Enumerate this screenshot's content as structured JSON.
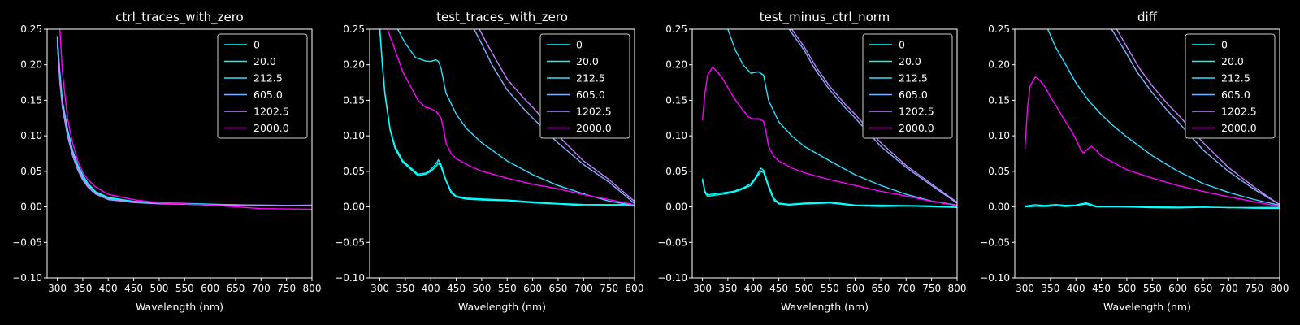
{
  "theme": {
    "background": "#000000",
    "axis_color": "#ffffff",
    "series_colors": {
      "0": "#00ffff",
      "20.0": "#0affff",
      "212.5": "#33ddff",
      "605.0": "#7fb1ff",
      "1202.5": "#c080ff",
      "2000.0": "#ff00ff"
    }
  },
  "chart_data": [
    {
      "type": "line",
      "title": "ctrl_traces_with_zero",
      "xlabel": "Wavelength (nm)",
      "ylabel": "",
      "xlim": [
        280,
        800
      ],
      "ylim": [
        -0.1,
        0.25
      ],
      "xticks": [
        "300",
        "350",
        "400",
        "450",
        "500",
        "550",
        "600",
        "650",
        "700",
        "750",
        "800"
      ],
      "yticks": [
        "−0.10",
        "−0.05",
        "0.00",
        "0.05",
        "0.10",
        "0.15",
        "0.20",
        "0.25"
      ],
      "legend_position": "top-right",
      "grid": false,
      "series": [
        {
          "name": "0",
          "x": [
            300,
            305,
            310,
            320,
            330,
            340,
            350,
            360,
            375,
            400,
            450,
            500,
            600,
            700,
            800
          ],
          "y": [
            0.24,
            0.19,
            0.15,
            0.11,
            0.08,
            0.06,
            0.045,
            0.033,
            0.022,
            0.013,
            0.008,
            0.006,
            0.004,
            0.002,
            0.002
          ]
        },
        {
          "name": "20.0",
          "x": [
            300,
            305,
            310,
            320,
            330,
            340,
            350,
            360,
            375,
            400,
            450,
            500,
            600,
            700,
            800
          ],
          "y": [
            0.24,
            0.185,
            0.148,
            0.108,
            0.078,
            0.058,
            0.044,
            0.032,
            0.021,
            0.012,
            0.007,
            0.005,
            0.003,
            0.002,
            0.002
          ]
        },
        {
          "name": "212.5",
          "x": [
            300,
            305,
            310,
            320,
            330,
            340,
            350,
            360,
            375,
            400,
            450,
            500,
            600,
            700,
            800
          ],
          "y": [
            0.235,
            0.18,
            0.145,
            0.105,
            0.076,
            0.056,
            0.042,
            0.03,
            0.02,
            0.011,
            0.007,
            0.005,
            0.003,
            0.002,
            0.002
          ]
        },
        {
          "name": "605.0",
          "x": [
            300,
            305,
            310,
            320,
            330,
            340,
            350,
            360,
            375,
            400,
            450,
            500,
            600,
            700,
            800
          ],
          "y": [
            0.23,
            0.175,
            0.14,
            0.1,
            0.072,
            0.052,
            0.038,
            0.028,
            0.018,
            0.01,
            0.006,
            0.004,
            0.003,
            0.002,
            0.002
          ]
        },
        {
          "name": "1202.5",
          "x": [
            300,
            305,
            310,
            320,
            330,
            340,
            350,
            360,
            375,
            400,
            450,
            500,
            600,
            700,
            800
          ],
          "y": [
            0.235,
            0.18,
            0.143,
            0.103,
            0.074,
            0.054,
            0.04,
            0.029,
            0.019,
            0.011,
            0.007,
            0.005,
            0.003,
            0.002,
            0.002
          ]
        },
        {
          "name": "2000.0",
          "x": [
            305,
            310,
            320,
            330,
            340,
            350,
            360,
            375,
            400,
            450,
            500,
            600,
            700,
            800
          ],
          "y": [
            0.25,
            0.19,
            0.125,
            0.09,
            0.065,
            0.048,
            0.038,
            0.028,
            0.018,
            0.01,
            0.006,
            0.003,
            -0.002,
            -0.003
          ]
        }
      ]
    },
    {
      "type": "line",
      "title": "test_traces_with_zero",
      "xlabel": "Wavelength (nm)",
      "ylabel": "",
      "xlim": [
        280,
        800
      ],
      "ylim": [
        -0.1,
        0.25
      ],
      "xticks": [
        "300",
        "350",
        "400",
        "450",
        "500",
        "550",
        "600",
        "650",
        "700",
        "750",
        "800"
      ],
      "yticks": [
        "−0.10",
        "−0.05",
        "0.00",
        "0.05",
        "0.10",
        "0.15",
        "0.20",
        "0.25"
      ],
      "legend_position": "top-right",
      "grid": false,
      "series": [
        {
          "name": "0",
          "x": [
            300,
            305,
            310,
            320,
            330,
            345,
            360,
            375,
            390,
            400,
            410,
            415,
            420,
            430,
            440,
            450,
            470,
            500,
            550,
            600,
            650,
            700,
            750,
            800
          ],
          "y": [
            0.25,
            0.2,
            0.16,
            0.11,
            0.085,
            0.065,
            0.055,
            0.046,
            0.048,
            0.052,
            0.06,
            0.066,
            0.06,
            0.038,
            0.022,
            0.015,
            0.012,
            0.011,
            0.01,
            0.007,
            0.005,
            0.003,
            0.003,
            0.003
          ]
        },
        {
          "name": "20.0",
          "x": [
            300,
            305,
            310,
            320,
            330,
            345,
            360,
            375,
            390,
            400,
            410,
            415,
            420,
            430,
            440,
            450,
            470,
            500,
            550,
            600,
            650,
            700,
            750,
            800
          ],
          "y": [
            0.25,
            0.198,
            0.158,
            0.108,
            0.082,
            0.063,
            0.053,
            0.044,
            0.046,
            0.05,
            0.057,
            0.062,
            0.057,
            0.036,
            0.02,
            0.014,
            0.011,
            0.01,
            0.009,
            0.006,
            0.004,
            0.002,
            0.002,
            0.002
          ]
        },
        {
          "name": "212.5",
          "x": [
            335,
            350,
            370,
            390,
            400,
            410,
            415,
            420,
            430,
            450,
            470,
            500,
            550,
            600,
            650,
            700,
            750,
            800
          ],
          "y": [
            0.25,
            0.23,
            0.21,
            0.205,
            0.205,
            0.207,
            0.205,
            0.195,
            0.16,
            0.13,
            0.11,
            0.09,
            0.065,
            0.045,
            0.03,
            0.018,
            0.008,
            0.002
          ]
        },
        {
          "name": "605.0",
          "x": [
            485,
            500,
            520,
            550,
            580,
            600,
            650,
            700,
            750,
            800
          ],
          "y": [
            0.25,
            0.23,
            0.2,
            0.165,
            0.14,
            0.125,
            0.09,
            0.06,
            0.035,
            0.005
          ]
        },
        {
          "name": "1202.5",
          "x": [
            495,
            510,
            530,
            550,
            580,
            600,
            650,
            700,
            750,
            800
          ],
          "y": [
            0.25,
            0.23,
            0.205,
            0.18,
            0.155,
            0.14,
            0.1,
            0.065,
            0.038,
            0.008
          ]
        },
        {
          "name": "2000.0",
          "x": [
            315,
            330,
            345,
            360,
            375,
            390,
            400,
            410,
            420,
            425,
            430,
            440,
            450,
            475,
            500,
            550,
            600,
            650,
            700,
            750,
            800
          ],
          "y": [
            0.25,
            0.22,
            0.19,
            0.17,
            0.15,
            0.14,
            0.138,
            0.135,
            0.125,
            0.11,
            0.09,
            0.075,
            0.068,
            0.058,
            0.05,
            0.04,
            0.032,
            0.025,
            0.017,
            0.01,
            0.003
          ]
        }
      ]
    },
    {
      "type": "line",
      "title": "test_minus_ctrl_norm",
      "xlabel": "Wavelength (nm)",
      "ylabel": "",
      "xlim": [
        280,
        800
      ],
      "ylim": [
        -0.1,
        0.25
      ],
      "xticks": [
        "300",
        "350",
        "400",
        "450",
        "500",
        "550",
        "600",
        "650",
        "700",
        "750",
        "800"
      ],
      "yticks": [
        "−0.10",
        "−0.05",
        "0.00",
        "0.05",
        "0.10",
        "0.15",
        "0.20",
        "0.25"
      ],
      "legend_position": "top-right",
      "grid": false,
      "series": [
        {
          "name": "0",
          "x": [
            300,
            305,
            310,
            320,
            340,
            360,
            380,
            395,
            405,
            415,
            420,
            430,
            440,
            450,
            470,
            500,
            550,
            600,
            650,
            700,
            750,
            800
          ],
          "y": [
            0.04,
            0.022,
            0.017,
            0.018,
            0.02,
            0.022,
            0.027,
            0.033,
            0.042,
            0.054,
            0.052,
            0.03,
            0.012,
            0.005,
            0.004,
            0.005,
            0.007,
            0.003,
            0.002,
            0.002,
            0.001,
            0.0
          ]
        },
        {
          "name": "20.0",
          "x": [
            300,
            305,
            310,
            320,
            340,
            360,
            380,
            395,
            405,
            415,
            420,
            430,
            440,
            450,
            470,
            500,
            550,
            600,
            650,
            700,
            750,
            800
          ],
          "y": [
            0.038,
            0.02,
            0.015,
            0.016,
            0.018,
            0.02,
            0.025,
            0.03,
            0.04,
            0.05,
            0.048,
            0.028,
            0.01,
            0.004,
            0.003,
            0.004,
            0.006,
            0.002,
            0.001,
            0.001,
            0.0,
            -0.001
          ]
        },
        {
          "name": "212.5",
          "x": [
            350,
            365,
            380,
            395,
            410,
            420,
            430,
            450,
            475,
            500,
            550,
            600,
            650,
            700,
            750,
            800
          ],
          "y": [
            0.25,
            0.22,
            0.2,
            0.188,
            0.19,
            0.185,
            0.15,
            0.12,
            0.1,
            0.085,
            0.065,
            0.045,
            0.03,
            0.018,
            0.008,
            0.002
          ]
        },
        {
          "name": "605.0",
          "x": [
            470,
            500,
            520,
            550,
            580,
            600,
            650,
            700,
            750,
            800
          ],
          "y": [
            0.25,
            0.22,
            0.195,
            0.165,
            0.14,
            0.125,
            0.085,
            0.055,
            0.03,
            0.005
          ]
        },
        {
          "name": "1202.5",
          "x": [
            475,
            500,
            525,
            550,
            580,
            600,
            650,
            700,
            750,
            800
          ],
          "y": [
            0.25,
            0.225,
            0.195,
            0.17,
            0.145,
            0.13,
            0.09,
            0.058,
            0.032,
            0.006
          ]
        },
        {
          "name": "2000.0",
          "x": [
            300,
            305,
            310,
            320,
            330,
            340,
            350,
            360,
            375,
            390,
            400,
            410,
            420,
            425,
            430,
            440,
            450,
            475,
            500,
            550,
            600,
            650,
            700,
            750,
            800
          ],
          "y": [
            0.122,
            0.16,
            0.185,
            0.197,
            0.19,
            0.18,
            0.168,
            0.155,
            0.14,
            0.127,
            0.124,
            0.124,
            0.12,
            0.105,
            0.085,
            0.072,
            0.065,
            0.055,
            0.048,
            0.038,
            0.03,
            0.022,
            0.015,
            0.008,
            0.002
          ]
        }
      ]
    },
    {
      "type": "line",
      "title": "diff",
      "xlabel": "Wavelength (nm)",
      "ylabel": "",
      "xlim": [
        280,
        800
      ],
      "ylim": [
        -0.1,
        0.25
      ],
      "xticks": [
        "300",
        "350",
        "400",
        "450",
        "500",
        "550",
        "600",
        "650",
        "700",
        "750",
        "800"
      ],
      "yticks": [
        "−0.10",
        "−0.05",
        "0.00",
        "0.05",
        "0.10",
        "0.15",
        "0.20",
        "0.25"
      ],
      "legend_position": "top-right",
      "grid": false,
      "series": [
        {
          "name": "0",
          "x": [
            300,
            320,
            340,
            360,
            380,
            400,
            410,
            420,
            430,
            440,
            460,
            500,
            550,
            600,
            650,
            700,
            750,
            800
          ],
          "y": [
            0.001,
            0.003,
            0.002,
            0.003,
            0.002,
            0.003,
            0.004,
            0.006,
            0.003,
            0.001,
            0.001,
            0.001,
            0.0,
            0.0,
            0.0,
            -0.001,
            -0.001,
            -0.001
          ]
        },
        {
          "name": "20.0",
          "x": [
            300,
            320,
            340,
            360,
            380,
            400,
            410,
            420,
            430,
            440,
            460,
            500,
            550,
            600,
            650,
            700,
            750,
            800
          ],
          "y": [
            0.0,
            0.001,
            0.001,
            0.002,
            0.001,
            0.002,
            0.003,
            0.004,
            0.002,
            0.0,
            0.0,
            0.0,
            -0.001,
            -0.001,
            -0.001,
            -0.001,
            -0.002,
            -0.002
          ]
        },
        {
          "name": "212.5",
          "x": [
            345,
            360,
            380,
            400,
            425,
            450,
            475,
            500,
            550,
            600,
            650,
            700,
            750,
            800
          ],
          "y": [
            0.25,
            0.225,
            0.2,
            0.175,
            0.15,
            0.13,
            0.113,
            0.098,
            0.072,
            0.05,
            0.033,
            0.02,
            0.01,
            0.002
          ]
        },
        {
          "name": "605.0",
          "x": [
            470,
            500,
            520,
            550,
            580,
            600,
            650,
            700,
            750,
            800
          ],
          "y": [
            0.25,
            0.215,
            0.19,
            0.16,
            0.135,
            0.12,
            0.08,
            0.05,
            0.025,
            0.003
          ]
        },
        {
          "name": "1202.5",
          "x": [
            480,
            500,
            525,
            550,
            580,
            600,
            650,
            700,
            750,
            800
          ],
          "y": [
            0.25,
            0.225,
            0.195,
            0.17,
            0.145,
            0.13,
            0.09,
            0.055,
            0.028,
            0.003
          ]
        },
        {
          "name": "2000.0",
          "x": [
            300,
            305,
            310,
            320,
            330,
            340,
            350,
            360,
            375,
            390,
            400,
            410,
            415,
            420,
            430,
            440,
            450,
            475,
            500,
            550,
            600,
            650,
            700,
            750,
            800
          ],
          "y": [
            0.082,
            0.14,
            0.17,
            0.183,
            0.178,
            0.168,
            0.155,
            0.143,
            0.125,
            0.108,
            0.095,
            0.08,
            0.076,
            0.08,
            0.085,
            0.08,
            0.072,
            0.062,
            0.052,
            0.04,
            0.03,
            0.022,
            0.014,
            0.007,
            0.001
          ]
        }
      ]
    }
  ]
}
